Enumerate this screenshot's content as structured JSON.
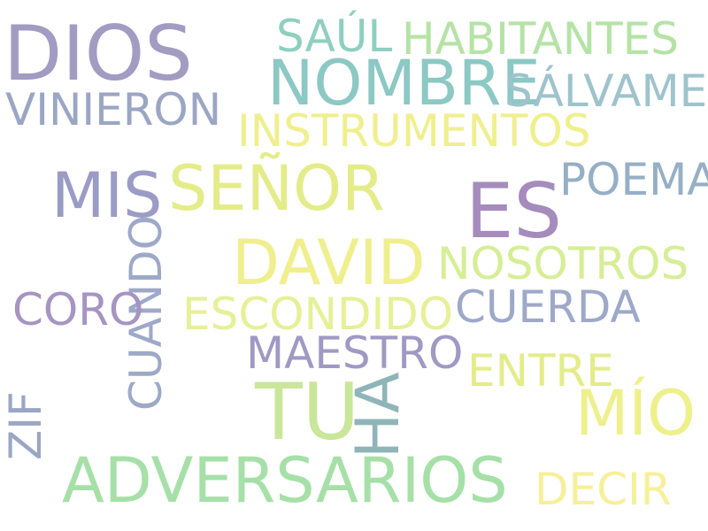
{
  "words": [
    {
      "id": "dios",
      "text": "DIOS",
      "color": "#a29bc2"
    },
    {
      "id": "saul",
      "text": "SAÚL",
      "color": "#8fcfc0"
    },
    {
      "id": "habitantes",
      "text": "HABITANTES",
      "color": "#b5e3a6"
    },
    {
      "id": "nombre",
      "text": "NOMBRE",
      "color": "#8cc8c4"
    },
    {
      "id": "salvame",
      "text": "SÁLVAME",
      "color": "#9ec3cc"
    },
    {
      "id": "vinieron",
      "text": "VINIERON",
      "color": "#9ba6c4"
    },
    {
      "id": "instrumentos",
      "text": "INSTRUMENTOS",
      "color": "#f0ef8e"
    },
    {
      "id": "poema",
      "text": "POEMA",
      "color": "#96afc6"
    },
    {
      "id": "mis",
      "text": "MIS",
      "color": "#9b9bc6"
    },
    {
      "id": "senor",
      "text": "SEÑOR",
      "color": "#e4ec8a"
    },
    {
      "id": "es",
      "text": "ES",
      "color": "#a58cbd"
    },
    {
      "id": "cuando",
      "text": "CUANDO",
      "color": "#9ea9c8"
    },
    {
      "id": "david",
      "text": "DAVID",
      "color": "#f0ef8e"
    },
    {
      "id": "nosotros",
      "text": "NOSOTROS",
      "color": "#d6ee95"
    },
    {
      "id": "coro",
      "text": "CORO",
      "color": "#a694c2"
    },
    {
      "id": "escondido",
      "text": "ESCONDIDO",
      "color": "#e6f096"
    },
    {
      "id": "cuerda",
      "text": "CUERDA",
      "color": "#9ea9c8"
    },
    {
      "id": "maestro",
      "text": "MAESTRO",
      "color": "#a099c4"
    },
    {
      "id": "entre",
      "text": "ENTRE",
      "color": "#e4ec8a"
    },
    {
      "id": "zif",
      "text": "ZIF",
      "color": "#9ba6c4"
    },
    {
      "id": "tu",
      "text": "TU",
      "color": "#c9e69a"
    },
    {
      "id": "ha",
      "text": "HA",
      "color": "#8fb5b8"
    },
    {
      "id": "mio",
      "text": "MÍO",
      "color": "#eef08c"
    },
    {
      "id": "adversarios",
      "text": "ADVERSARIOS",
      "color": "#a6e0a8"
    },
    {
      "id": "decir",
      "text": "DECIR",
      "color": "#f6f09a"
    }
  ]
}
